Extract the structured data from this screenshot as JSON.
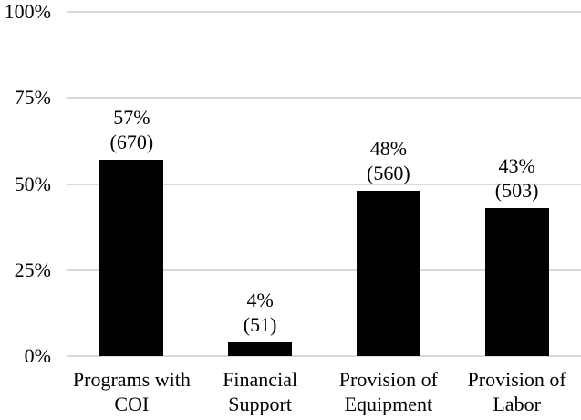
{
  "chart_data": {
    "type": "bar",
    "title": "",
    "xlabel": "",
    "ylabel": "",
    "categories": [
      "Programs with COI",
      "Financial Support",
      "Provision of Equipment",
      "Provision of Labor"
    ],
    "category_lines": [
      [
        "Programs with",
        "COI"
      ],
      [
        "Financial",
        "Support"
      ],
      [
        "Provision of",
        "Equipment"
      ],
      [
        "Provision of",
        "Labor"
      ]
    ],
    "values": [
      57,
      4,
      48,
      43
    ],
    "counts": [
      670,
      51,
      560,
      503
    ],
    "pct_labels": [
      "57%",
      "4%",
      "48%",
      "43%"
    ],
    "count_labels": [
      "(670)",
      "(51)",
      "(560)",
      "(503)"
    ],
    "y_tick_values": [
      100,
      75,
      50,
      25,
      0
    ],
    "y_tick_labels": [
      "100%",
      "75%",
      "50%",
      "25%",
      "0%"
    ],
    "ylim": [
      0,
      100
    ],
    "grid": "horizontal",
    "legend": "none",
    "bar_color": "#000000",
    "gridline_color": "#d9d9d9",
    "text_color": "#000000",
    "background_color": "#ffffff"
  }
}
